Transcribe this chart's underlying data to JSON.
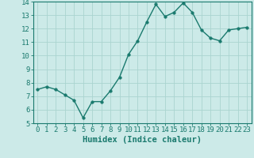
{
  "x": [
    0,
    1,
    2,
    3,
    4,
    5,
    6,
    7,
    8,
    9,
    10,
    11,
    12,
    13,
    14,
    15,
    16,
    17,
    18,
    19,
    20,
    21,
    22,
    23
  ],
  "y": [
    7.5,
    7.7,
    7.5,
    7.1,
    6.7,
    5.4,
    6.6,
    6.6,
    7.4,
    8.4,
    10.1,
    11.1,
    12.5,
    13.8,
    12.9,
    13.2,
    13.9,
    13.2,
    11.9,
    11.3,
    11.1,
    11.9,
    12.0,
    12.1
  ],
  "line_color": "#1a7a6e",
  "marker_color": "#1a7a6e",
  "bg_color": "#cceae8",
  "grid_color": "#aad4d0",
  "xlabel": "Humidex (Indice chaleur)",
  "xlim": [
    -0.5,
    23.5
  ],
  "ylim": [
    5,
    14
  ],
  "yticks": [
    5,
    6,
    7,
    8,
    9,
    10,
    11,
    12,
    13,
    14
  ],
  "xticks": [
    0,
    1,
    2,
    3,
    4,
    5,
    6,
    7,
    8,
    9,
    10,
    11,
    12,
    13,
    14,
    15,
    16,
    17,
    18,
    19,
    20,
    21,
    22,
    23
  ],
  "xlabel_fontsize": 7.5,
  "tick_fontsize": 6.5,
  "marker_size": 2.5,
  "line_width": 1.0
}
